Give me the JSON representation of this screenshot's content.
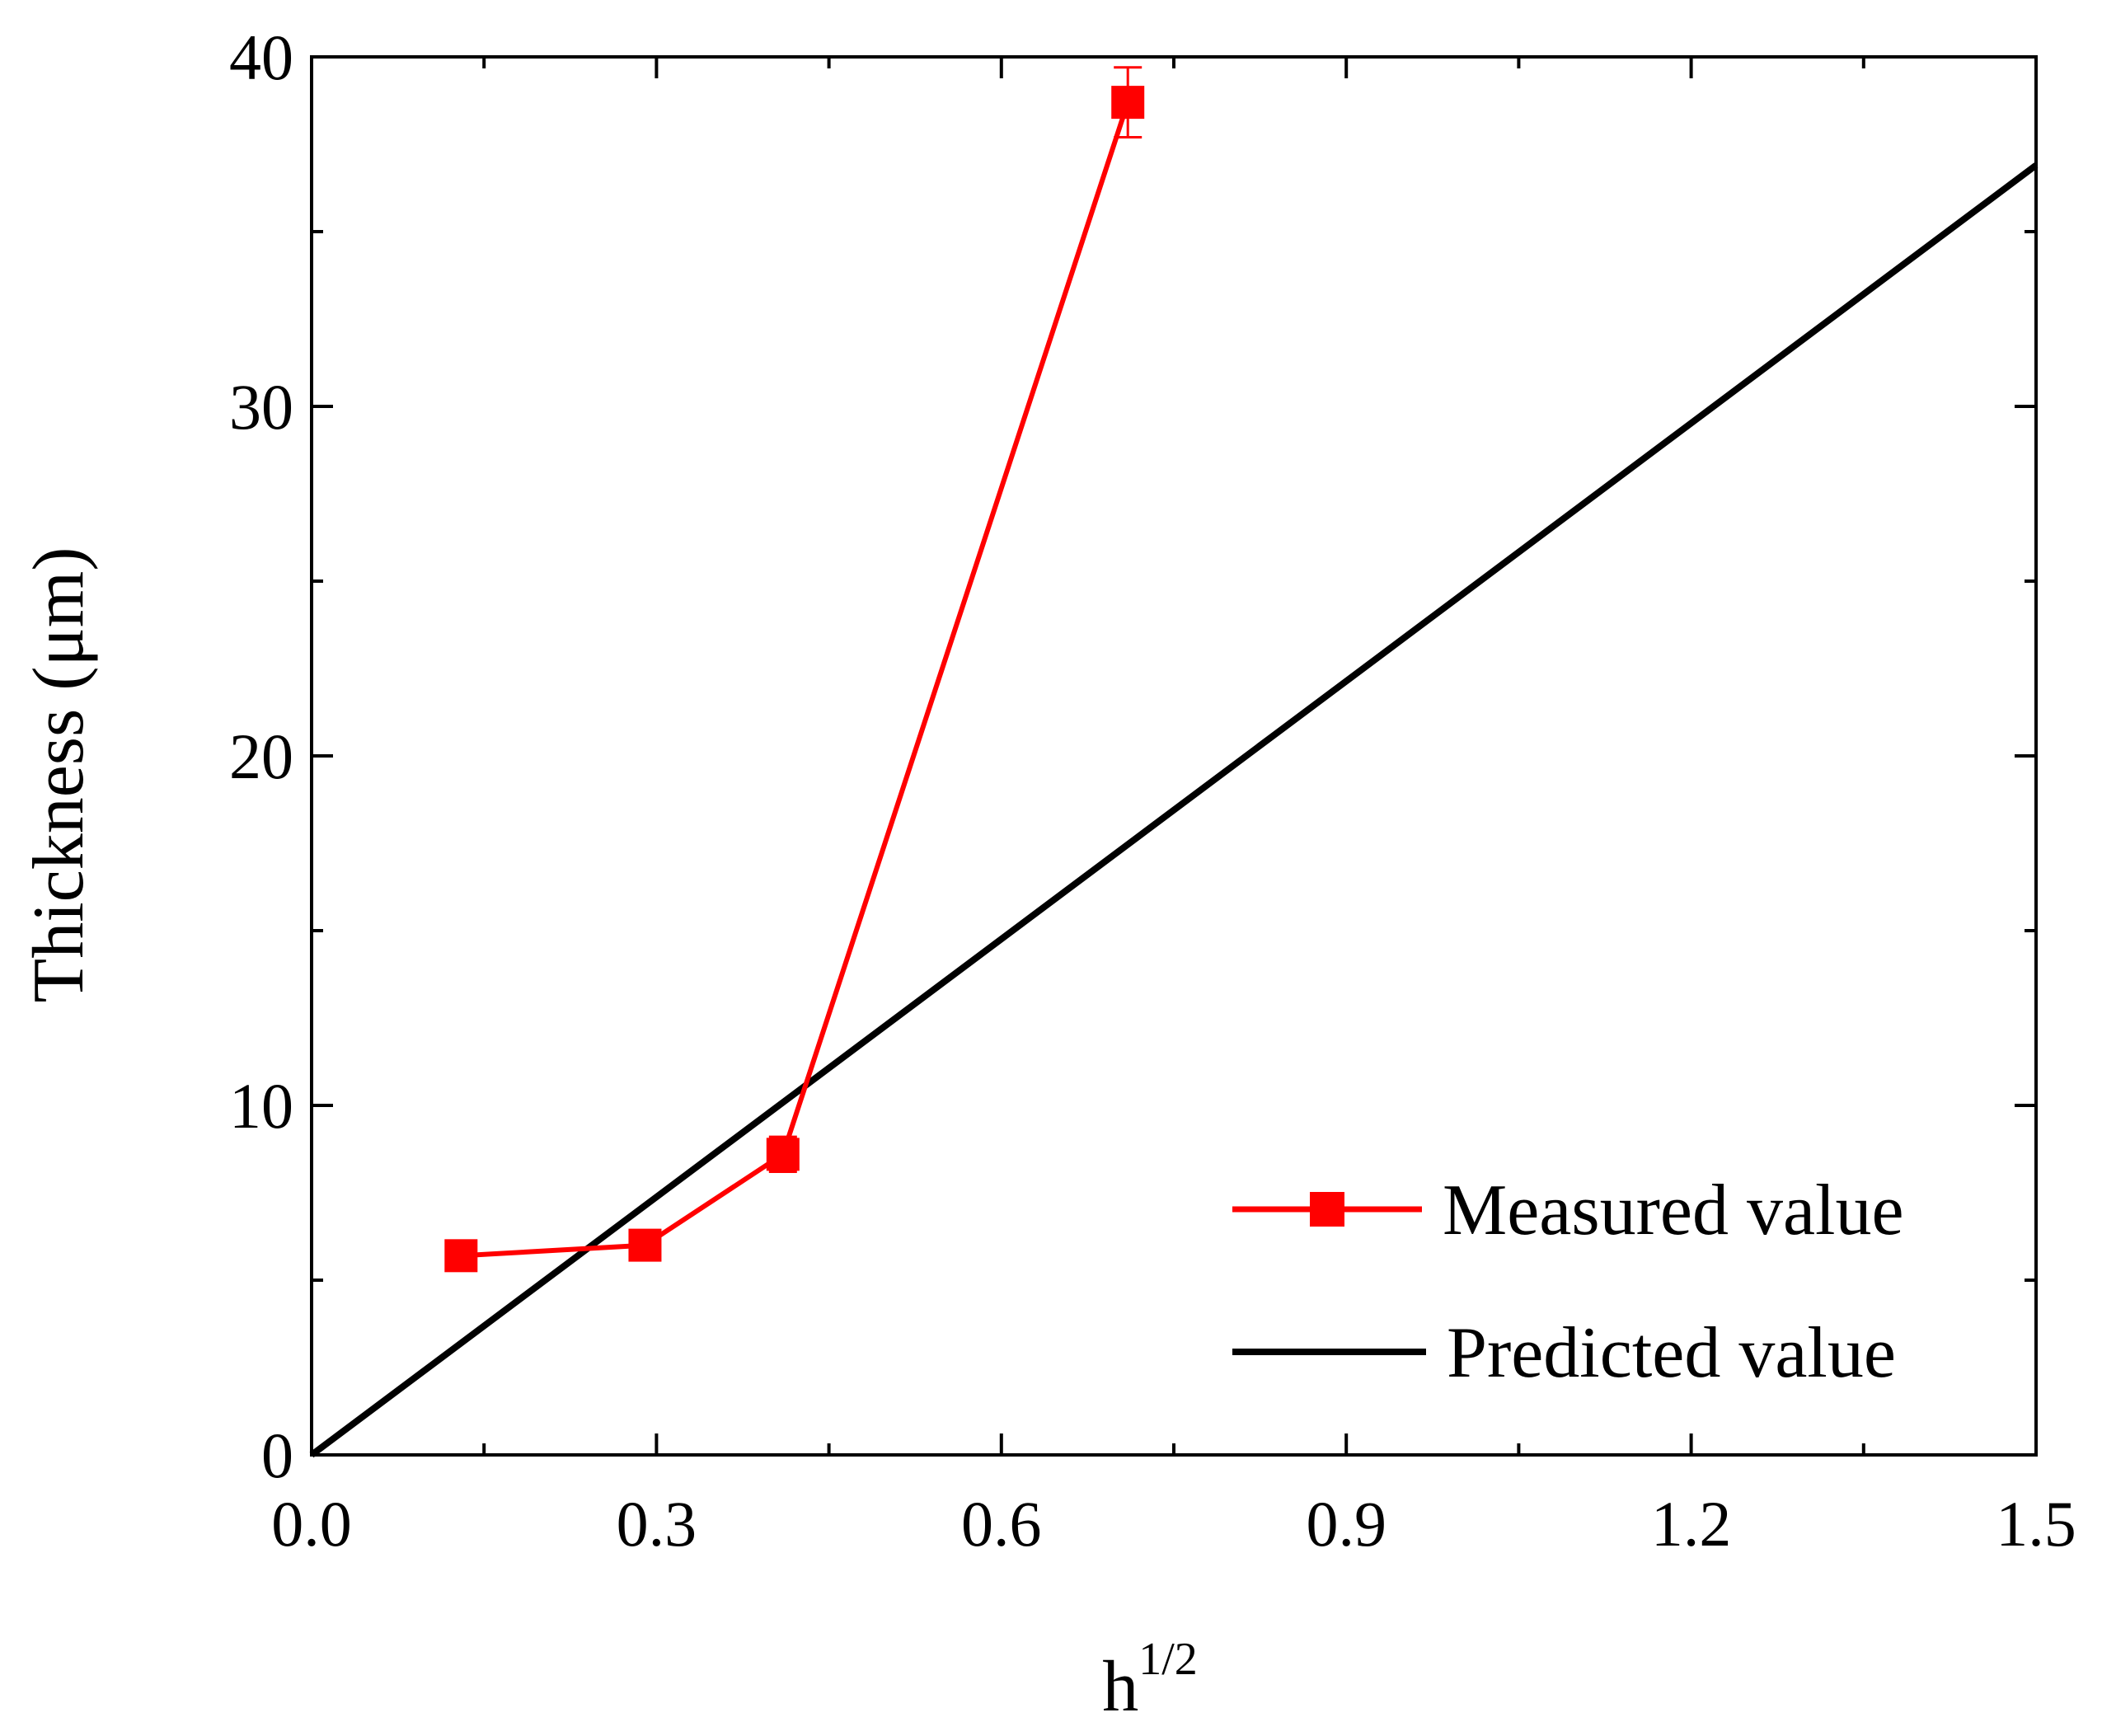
{
  "chart_data": {
    "type": "line",
    "title": "",
    "xlabel_base": "h",
    "xlabel_sup": "1/2",
    "ylabel": "Thickness (μm)",
    "xlim": [
      0.0,
      1.5
    ],
    "ylim": [
      0,
      40
    ],
    "x_major_ticks": [
      0.0,
      0.3,
      0.6,
      0.9,
      1.2,
      1.5
    ],
    "x_tick_labels": [
      "0.0",
      "0.3",
      "0.6",
      "0.9",
      "1.2",
      "1.5"
    ],
    "x_minor_ticks": [
      0.15,
      0.45,
      0.75,
      1.05,
      1.35
    ],
    "y_major_ticks": [
      0,
      10,
      20,
      30,
      40
    ],
    "y_tick_labels": [
      "0",
      "10",
      "20",
      "30",
      "40"
    ],
    "y_minor_ticks": [
      5,
      15,
      25,
      35
    ],
    "grid": false,
    "legend_position": "bottom-right",
    "series": [
      {
        "name": "Measured value",
        "kind": "line-marker",
        "color": "#ff0000",
        "marker": "square",
        "x": [
          0.13,
          0.29,
          0.41,
          0.71
        ],
        "y": [
          5.7,
          6.0,
          8.6,
          38.7
        ],
        "error": [
          0.15,
          0.15,
          0.5,
          1.0
        ]
      },
      {
        "name": "Predicted value",
        "kind": "line",
        "color": "#000000",
        "x": [
          0.0,
          1.5
        ],
        "y": [
          0.0,
          36.9
        ]
      }
    ]
  }
}
